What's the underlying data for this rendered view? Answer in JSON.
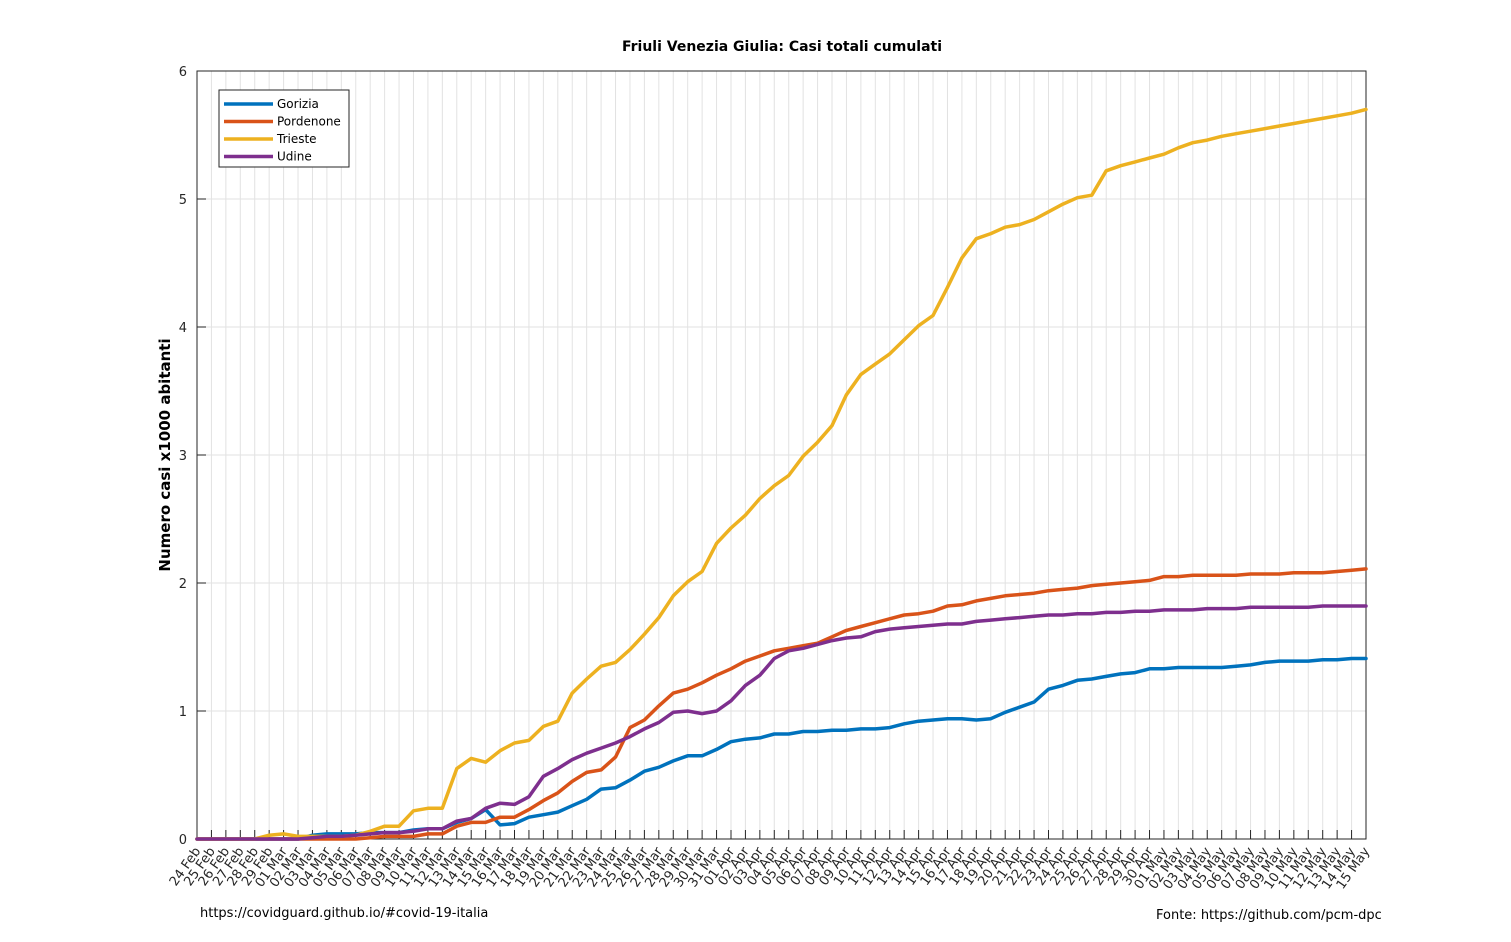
{
  "footer": {
    "left": "https://covidguard.github.io/#covid-19-italia",
    "right": "Fonte: https://github.com/pcm-dpc"
  },
  "chart_data": {
    "type": "line",
    "title": "Friuli Venezia Giulia: Casi totali cumulati",
    "xlabel": "",
    "ylabel": "Numero casi x1000 abitanti",
    "ylim": [
      0,
      6
    ],
    "yticks": [
      0,
      1,
      2,
      3,
      4,
      5,
      6
    ],
    "grid": true,
    "legend_position": "top-left",
    "categories": [
      "24 Feb",
      "25 Feb",
      "26 Feb",
      "27 Feb",
      "28 Feb",
      "29 Feb",
      "01 Mar",
      "02 Mar",
      "03 Mar",
      "04 Mar",
      "05 Mar",
      "06 Mar",
      "07 Mar",
      "08 Mar",
      "09 Mar",
      "10 Mar",
      "11 Mar",
      "12 Mar",
      "13 Mar",
      "14 Mar",
      "15 Mar",
      "16 Mar",
      "17 Mar",
      "18 Mar",
      "19 Mar",
      "20 Mar",
      "21 Mar",
      "22 Mar",
      "23 Mar",
      "24 Mar",
      "25 Mar",
      "26 Mar",
      "27 Mar",
      "28 Mar",
      "29 Mar",
      "30 Mar",
      "31 Mar",
      "01 Apr",
      "02 Apr",
      "03 Apr",
      "04 Apr",
      "05 Apr",
      "06 Apr",
      "07 Apr",
      "08 Apr",
      "09 Apr",
      "10 Apr",
      "11 Apr",
      "12 Apr",
      "13 Apr",
      "14 Apr",
      "15 Apr",
      "16 Apr",
      "17 Apr",
      "18 Apr",
      "19 Apr",
      "20 Apr",
      "21 Apr",
      "22 Apr",
      "23 Apr",
      "24 Apr",
      "25 Apr",
      "26 Apr",
      "27 Apr",
      "28 Apr",
      "29 Apr",
      "30 Apr",
      "01 May",
      "02 May",
      "03 May",
      "04 May",
      "05 May",
      "06 May",
      "07 May",
      "08 May",
      "09 May",
      "10 May",
      "11 May",
      "12 May",
      "13 May",
      "14 May",
      "15 May"
    ],
    "series": [
      {
        "name": "Gorizia",
        "color": "#0072bd",
        "values": [
          0,
          0,
          0,
          0,
          0,
          0,
          0,
          0,
          0.03,
          0.04,
          0.04,
          0.04,
          0.05,
          0.05,
          0.05,
          0.07,
          0.08,
          0.08,
          0.13,
          0.16,
          0.23,
          0.11,
          0.12,
          0.17,
          0.19,
          0.21,
          0.26,
          0.31,
          0.39,
          0.4,
          0.46,
          0.53,
          0.56,
          0.61,
          0.65,
          0.65,
          0.7,
          0.76,
          0.78,
          0.79,
          0.82,
          0.82,
          0.84,
          0.84,
          0.85,
          0.85,
          0.86,
          0.86,
          0.87,
          0.9,
          0.92,
          0.93,
          0.94,
          0.94,
          0.93,
          0.94,
          0.99,
          1.03,
          1.07,
          1.17,
          1.2,
          1.24,
          1.25,
          1.27,
          1.29,
          1.3,
          1.33,
          1.33,
          1.34,
          1.34,
          1.34,
          1.34,
          1.35,
          1.36,
          1.38,
          1.39,
          1.39,
          1.39,
          1.4,
          1.4,
          1.41,
          1.41
        ]
      },
      {
        "name": "Pordenone",
        "color": "#d95319",
        "values": [
          0,
          0,
          0,
          0,
          0,
          0,
          0,
          0,
          0,
          0,
          0,
          0,
          0.01,
          0.02,
          0.02,
          0.02,
          0.04,
          0.04,
          0.1,
          0.13,
          0.13,
          0.17,
          0.17,
          0.23,
          0.3,
          0.36,
          0.45,
          0.52,
          0.54,
          0.64,
          0.87,
          0.93,
          1.04,
          1.14,
          1.17,
          1.22,
          1.28,
          1.33,
          1.39,
          1.43,
          1.47,
          1.49,
          1.51,
          1.53,
          1.58,
          1.63,
          1.66,
          1.69,
          1.72,
          1.75,
          1.76,
          1.78,
          1.82,
          1.83,
          1.86,
          1.88,
          1.9,
          1.91,
          1.92,
          1.94,
          1.95,
          1.96,
          1.98,
          1.99,
          2.0,
          2.01,
          2.02,
          2.05,
          2.05,
          2.06,
          2.06,
          2.06,
          2.06,
          2.07,
          2.07,
          2.07,
          2.08,
          2.08,
          2.08,
          2.09,
          2.1,
          2.11
        ]
      },
      {
        "name": "Trieste",
        "color": "#edb120",
        "values": [
          0,
          0,
          0,
          0,
          0,
          0.03,
          0.04,
          0.02,
          0.02,
          0.02,
          0.02,
          0.03,
          0.06,
          0.1,
          0.1,
          0.22,
          0.24,
          0.24,
          0.55,
          0.63,
          0.6,
          0.69,
          0.75,
          0.77,
          0.88,
          0.92,
          1.14,
          1.25,
          1.35,
          1.38,
          1.48,
          1.6,
          1.73,
          1.9,
          2.01,
          2.09,
          2.31,
          2.43,
          2.53,
          2.66,
          2.76,
          2.84,
          2.99,
          3.1,
          3.23,
          3.47,
          3.63,
          3.71,
          3.79,
          3.9,
          4.01,
          4.09,
          4.31,
          4.54,
          4.69,
          4.73,
          4.78,
          4.8,
          4.84,
          4.9,
          4.96,
          5.01,
          5.03,
          5.22,
          5.26,
          5.29,
          5.32,
          5.35,
          5.4,
          5.44,
          5.46,
          5.49,
          5.51,
          5.53,
          5.55,
          5.57,
          5.59,
          5.61,
          5.63,
          5.65,
          5.67,
          5.7
        ]
      },
      {
        "name": "Udine",
        "color": "#7e2f8e",
        "values": [
          0,
          0,
          0,
          0,
          0,
          0,
          0,
          0,
          0.01,
          0.02,
          0.02,
          0.03,
          0.04,
          0.05,
          0.05,
          0.06,
          0.08,
          0.08,
          0.14,
          0.16,
          0.24,
          0.28,
          0.27,
          0.33,
          0.49,
          0.55,
          0.62,
          0.67,
          0.71,
          0.75,
          0.8,
          0.86,
          0.91,
          0.99,
          1.0,
          0.98,
          1.0,
          1.08,
          1.2,
          1.28,
          1.41,
          1.47,
          1.49,
          1.52,
          1.55,
          1.57,
          1.58,
          1.62,
          1.64,
          1.65,
          1.66,
          1.67,
          1.68,
          1.68,
          1.7,
          1.71,
          1.72,
          1.73,
          1.74,
          1.75,
          1.75,
          1.76,
          1.76,
          1.77,
          1.77,
          1.78,
          1.78,
          1.79,
          1.79,
          1.79,
          1.8,
          1.8,
          1.8,
          1.81,
          1.81,
          1.81,
          1.81,
          1.81,
          1.82,
          1.82,
          1.82,
          1.82
        ]
      }
    ]
  }
}
